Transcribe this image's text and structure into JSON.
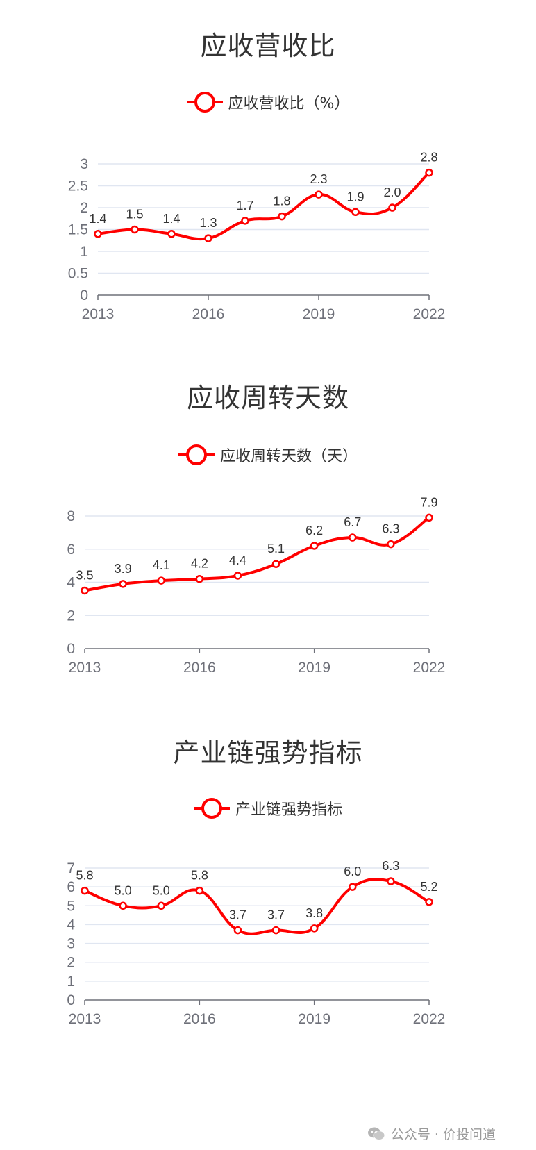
{
  "chart_data": [
    {
      "type": "line",
      "title": "应收营收比",
      "categories": [
        "2013",
        "2014",
        "2015",
        "2016",
        "2017",
        "2018",
        "2019",
        "2020",
        "2021",
        "2022"
      ],
      "x_tick_labels": [
        "2013",
        "2016",
        "2019",
        "2022"
      ],
      "series": [
        {
          "name": "应收营收比（%）",
          "values": [
            1.4,
            1.5,
            1.4,
            1.3,
            1.7,
            1.8,
            2.3,
            1.9,
            2.0,
            2.8
          ]
        }
      ],
      "data_labels": [
        "1.4",
        "1.5",
        "1.4",
        "1.3",
        "1.7",
        "1.8",
        "2.3",
        "1.9",
        "2.0",
        "2.8"
      ],
      "yticks": [
        0,
        0.5,
        1,
        1.5,
        2,
        2.5,
        3
      ],
      "ylim": [
        0,
        3
      ],
      "grid": true,
      "smooth": true,
      "color": "#ff0000",
      "legend_position": "top-center"
    },
    {
      "type": "line",
      "title": "应收周转天数",
      "categories": [
        "2013",
        "2014",
        "2015",
        "2016",
        "2017",
        "2018",
        "2019",
        "2020",
        "2021",
        "2022"
      ],
      "x_tick_labels": [
        "2013",
        "2016",
        "2019",
        "2022"
      ],
      "series": [
        {
          "name": "应收周转天数（天）",
          "values": [
            3.5,
            3.9,
            4.1,
            4.2,
            4.4,
            5.1,
            6.2,
            6.7,
            6.3,
            7.9
          ]
        }
      ],
      "data_labels": [
        "3.5",
        "3.9",
        "4.1",
        "4.2",
        "4.4",
        "5.1",
        "6.2",
        "6.7",
        "6.3",
        "7.9"
      ],
      "yticks": [
        0,
        2,
        4,
        6,
        8
      ],
      "ylim": [
        0,
        8
      ],
      "grid": true,
      "smooth": true,
      "color": "#ff0000",
      "legend_position": "top-center"
    },
    {
      "type": "line",
      "title": "产业链强势指标",
      "categories": [
        "2013",
        "2014",
        "2015",
        "2016",
        "2017",
        "2018",
        "2019",
        "2020",
        "2021",
        "2022"
      ],
      "x_tick_labels": [
        "2013",
        "2016",
        "2019",
        "2022"
      ],
      "series": [
        {
          "name": "产业链强势指标",
          "values": [
            5.8,
            5.0,
            5.0,
            5.8,
            3.7,
            3.7,
            3.8,
            6.0,
            6.3,
            5.2
          ]
        }
      ],
      "data_labels": [
        "5.8",
        "5.0",
        "5.0",
        "5.8",
        "3.7",
        "3.7",
        "3.8",
        "6.0",
        "6.3",
        "5.2"
      ],
      "yticks": [
        0,
        1,
        2,
        3,
        4,
        5,
        6,
        7
      ],
      "ylim": [
        0,
        7
      ],
      "grid": true,
      "smooth": true,
      "color": "#ff0000",
      "legend_position": "top-center"
    }
  ],
  "watermark": {
    "text": "公众号 · 价投问道",
    "icon": "wechat-icon"
  }
}
